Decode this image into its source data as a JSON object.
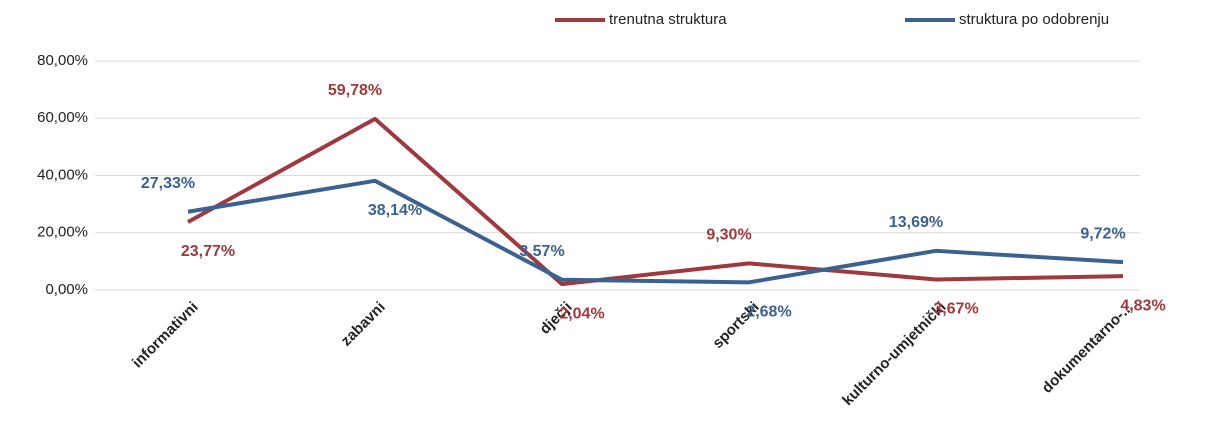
{
  "chart_data": {
    "type": "line",
    "categories": [
      "informativni",
      "zabavni",
      "dječji",
      "sportski",
      "kulturno-umjetnički",
      "dokumentarno-..."
    ],
    "series": [
      {
        "name": "trenutna struktura",
        "color": "#9e3a3f",
        "values": [
          23.77,
          59.78,
          2.04,
          9.3,
          3.67,
          4.83
        ],
        "value_labels": [
          "23,77%",
          "59,78%",
          "2,04%",
          "9,30%",
          "3,67%",
          "4,83%"
        ]
      },
      {
        "name": "struktura po odobrenju",
        "color": "#3b6190",
        "values": [
          27.33,
          38.14,
          3.57,
          2.68,
          13.69,
          9.72
        ],
        "value_labels": [
          "27,33%",
          "38,14%",
          "3,57%",
          "2,68%",
          "13,69%",
          "9,72%"
        ]
      }
    ],
    "ylim": [
      0,
      80
    ],
    "yticks": [
      {
        "value": 0,
        "label": "0,00%"
      },
      {
        "value": 20,
        "label": "20,00%"
      },
      {
        "value": 40,
        "label": "40,00%"
      },
      {
        "value": 60,
        "label": "60,00%"
      },
      {
        "value": 80,
        "label": "80,00%"
      }
    ],
    "grid": true,
    "legend": "top"
  }
}
